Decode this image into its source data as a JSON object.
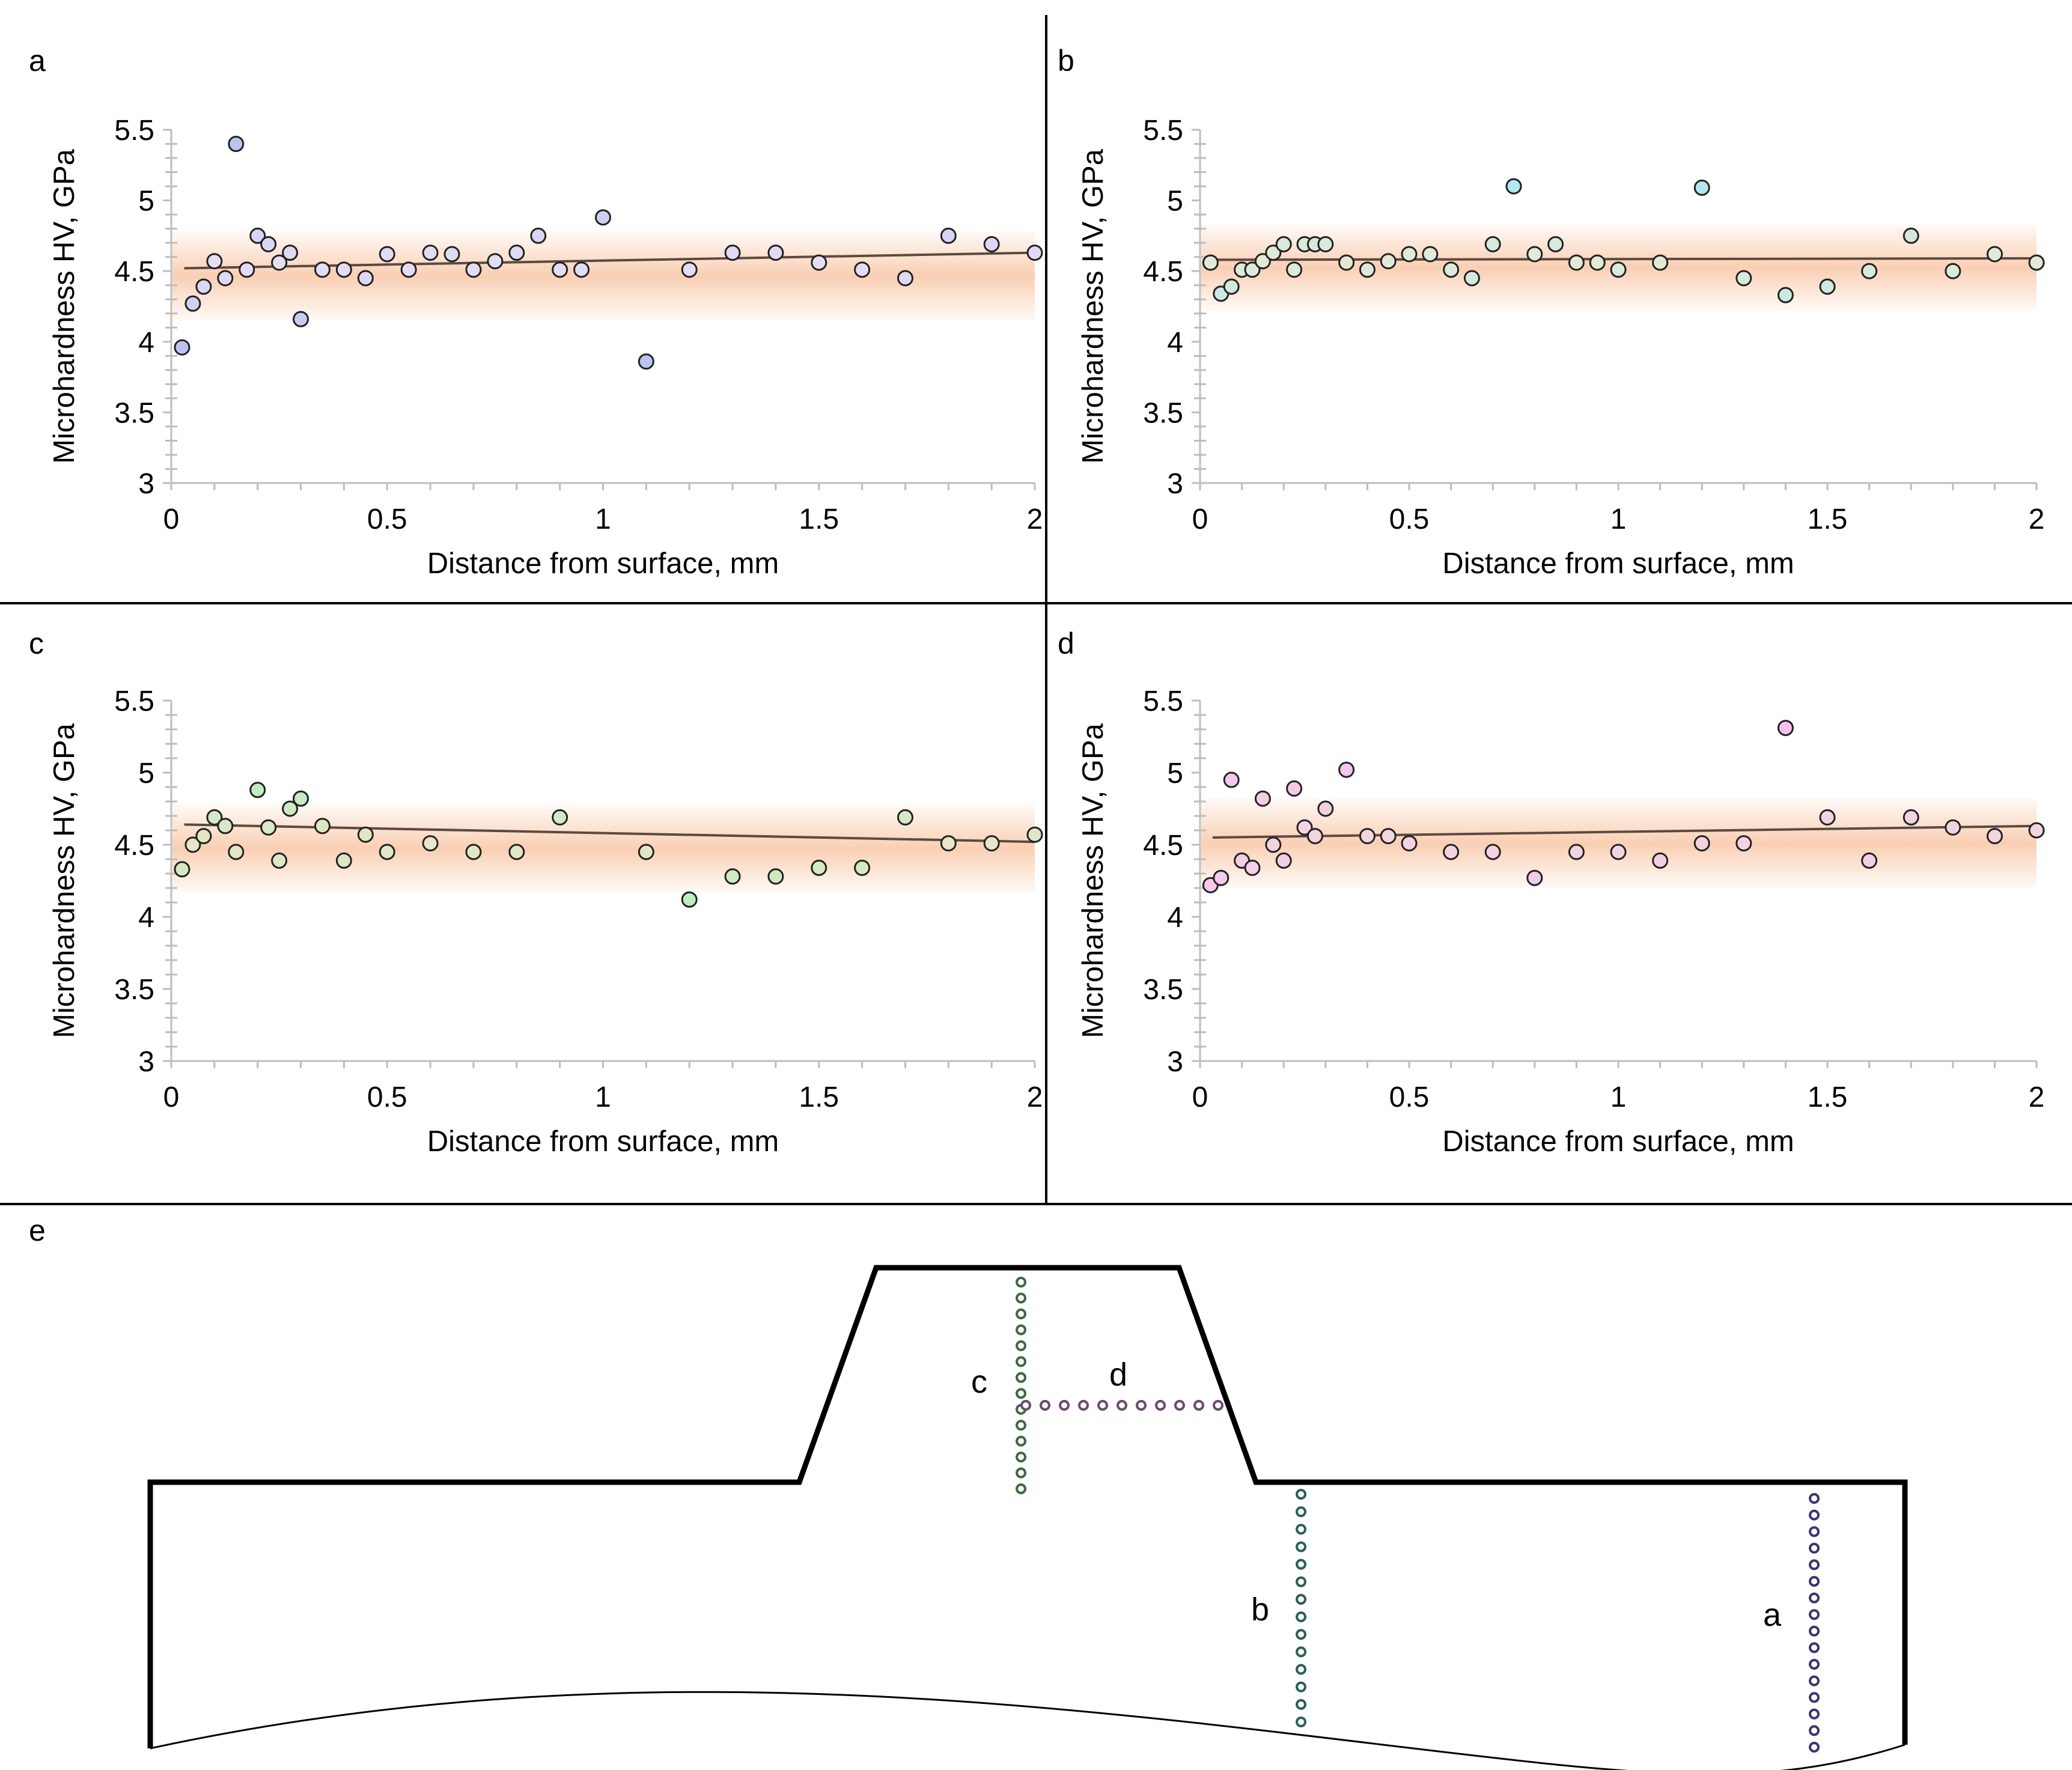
{
  "figure": {
    "panel_letters": [
      "a",
      "b",
      "c",
      "d",
      "e"
    ]
  },
  "chart_data": [
    {
      "id": "a",
      "type": "scatter",
      "xlabel": "Distance from surface, mm",
      "ylabel": "Microhardness HV, GPa",
      "xlim": [
        0,
        2
      ],
      "ylim": [
        3,
        5.5
      ],
      "xticks": [
        "0",
        "0.5",
        "1",
        "1.5",
        "2"
      ],
      "yticks": [
        "3",
        "3.5",
        "4",
        "4.5",
        "5",
        "5.5"
      ],
      "band": [
        4.15,
        4.78
      ],
      "trend": [
        [
          0.03,
          4.52
        ],
        [
          2,
          4.63
        ]
      ],
      "colors": {
        "light": "#e6dff3",
        "strong": "#bcc3f2",
        "band": "#f8bf9a",
        "trend": "#5b4a40"
      },
      "points": [
        [
          0.025,
          3.96
        ],
        [
          0.05,
          4.27
        ],
        [
          0.075,
          4.39
        ],
        [
          0.1,
          4.57
        ],
        [
          0.125,
          4.45
        ],
        [
          0.15,
          5.4
        ],
        [
          0.175,
          4.51
        ],
        [
          0.2,
          4.75
        ],
        [
          0.225,
          4.69
        ],
        [
          0.25,
          4.56
        ],
        [
          0.275,
          4.63
        ],
        [
          0.3,
          4.16
        ],
        [
          0.35,
          4.51
        ],
        [
          0.4,
          4.51
        ],
        [
          0.45,
          4.45
        ],
        [
          0.5,
          4.62
        ],
        [
          0.55,
          4.51
        ],
        [
          0.6,
          4.63
        ],
        [
          0.65,
          4.62
        ],
        [
          0.7,
          4.51
        ],
        [
          0.75,
          4.57
        ],
        [
          0.8,
          4.63
        ],
        [
          0.85,
          4.75
        ],
        [
          0.9,
          4.51
        ],
        [
          0.95,
          4.51
        ],
        [
          1.0,
          4.88
        ],
        [
          1.1,
          3.86
        ],
        [
          1.2,
          4.51
        ],
        [
          1.3,
          4.63
        ],
        [
          1.4,
          4.63
        ],
        [
          1.5,
          4.56
        ],
        [
          1.6,
          4.51
        ],
        [
          1.7,
          4.45
        ],
        [
          1.8,
          4.75
        ],
        [
          1.9,
          4.69
        ],
        [
          2.0,
          4.63
        ]
      ]
    },
    {
      "id": "b",
      "type": "scatter",
      "xlabel": "Distance from surface, mm",
      "ylabel": "Microhardness HV, GPa",
      "xlim": [
        0,
        2
      ],
      "ylim": [
        3,
        5.5
      ],
      "xticks": [
        "0",
        "0.5",
        "1",
        "1.5",
        "2"
      ],
      "yticks": [
        "3",
        "3.5",
        "4",
        "4.5",
        "5",
        "5.5"
      ],
      "band": [
        4.22,
        4.83
      ],
      "trend": [
        [
          0.03,
          4.58
        ],
        [
          2,
          4.59
        ]
      ],
      "colors": {
        "light": "#e2ead6",
        "strong": "#aee8ef",
        "band": "#f8bf9a",
        "trend": "#5b4a40"
      },
      "points": [
        [
          0.025,
          4.56
        ],
        [
          0.05,
          4.34
        ],
        [
          0.075,
          4.39
        ],
        [
          0.1,
          4.51
        ],
        [
          0.125,
          4.51
        ],
        [
          0.15,
          4.57
        ],
        [
          0.175,
          4.63
        ],
        [
          0.2,
          4.69
        ],
        [
          0.225,
          4.51
        ],
        [
          0.25,
          4.69
        ],
        [
          0.275,
          4.69
        ],
        [
          0.3,
          4.69
        ],
        [
          0.35,
          4.56
        ],
        [
          0.4,
          4.51
        ],
        [
          0.45,
          4.57
        ],
        [
          0.5,
          4.62
        ],
        [
          0.55,
          4.62
        ],
        [
          0.6,
          4.51
        ],
        [
          0.65,
          4.45
        ],
        [
          0.7,
          4.69
        ],
        [
          0.75,
          5.1
        ],
        [
          0.8,
          4.62
        ],
        [
          0.85,
          4.69
        ],
        [
          0.9,
          4.56
        ],
        [
          0.95,
          4.56
        ],
        [
          1.0,
          4.51
        ],
        [
          1.1,
          4.56
        ],
        [
          1.2,
          5.09
        ],
        [
          1.3,
          4.45
        ],
        [
          1.4,
          4.33
        ],
        [
          1.5,
          4.39
        ],
        [
          1.6,
          4.5
        ],
        [
          1.7,
          4.75
        ],
        [
          1.8,
          4.5
        ],
        [
          1.9,
          4.62
        ],
        [
          2.0,
          4.56
        ]
      ]
    },
    {
      "id": "c",
      "type": "scatter",
      "xlabel": "Distance from surface, mm",
      "ylabel": "Microhardness HV, GPa",
      "xlim": [
        0,
        2
      ],
      "ylim": [
        3,
        5.5
      ],
      "xticks": [
        "0",
        "0.5",
        "1",
        "1.5",
        "2"
      ],
      "yticks": [
        "3",
        "3.5",
        "4",
        "4.5",
        "5",
        "5.5"
      ],
      "band": [
        4.17,
        4.78
      ],
      "trend": [
        [
          0.03,
          4.64
        ],
        [
          2,
          4.52
        ]
      ],
      "colors": {
        "light": "#e8e6c6",
        "strong": "#aaf0bf",
        "band": "#f8bf9a",
        "trend": "#5b4a40"
      },
      "points": [
        [
          0.025,
          4.33
        ],
        [
          0.05,
          4.5
        ],
        [
          0.075,
          4.56
        ],
        [
          0.1,
          4.69
        ],
        [
          0.125,
          4.63
        ],
        [
          0.15,
          4.45
        ],
        [
          0.2,
          4.88
        ],
        [
          0.225,
          4.62
        ],
        [
          0.25,
          4.39
        ],
        [
          0.275,
          4.75
        ],
        [
          0.3,
          4.82
        ],
        [
          0.35,
          4.63
        ],
        [
          0.4,
          4.39
        ],
        [
          0.45,
          4.57
        ],
        [
          0.5,
          4.45
        ],
        [
          0.6,
          4.51
        ],
        [
          0.7,
          4.45
        ],
        [
          0.8,
          4.45
        ],
        [
          0.9,
          4.69
        ],
        [
          1.1,
          4.45
        ],
        [
          1.2,
          4.12
        ],
        [
          1.3,
          4.28
        ],
        [
          1.4,
          4.28
        ],
        [
          1.5,
          4.34
        ],
        [
          1.6,
          4.34
        ],
        [
          1.7,
          4.69
        ],
        [
          1.8,
          4.51
        ],
        [
          1.9,
          4.51
        ],
        [
          2.0,
          4.57
        ]
      ]
    },
    {
      "id": "d",
      "type": "scatter",
      "xlabel": "Distance from surface, mm",
      "ylabel": "Microhardness HV, GPa",
      "xlim": [
        0,
        2
      ],
      "ylim": [
        3,
        5.5
      ],
      "xticks": [
        "0",
        "0.5",
        "1",
        "1.5",
        "2"
      ],
      "yticks": [
        "3",
        "3.5",
        "4",
        "4.5",
        "5",
        "5.5"
      ],
      "band": [
        4.2,
        4.82
      ],
      "trend": [
        [
          0.03,
          4.55
        ],
        [
          2,
          4.63
        ]
      ],
      "colors": {
        "light": "#f2d6de",
        "strong": "#f5c2f0",
        "band": "#f8bf9a",
        "trend": "#5b4a40"
      },
      "points": [
        [
          0.025,
          4.22
        ],
        [
          0.05,
          4.27
        ],
        [
          0.075,
          4.95
        ],
        [
          0.1,
          4.39
        ],
        [
          0.125,
          4.34
        ],
        [
          0.15,
          4.82
        ],
        [
          0.175,
          4.5
        ],
        [
          0.2,
          4.39
        ],
        [
          0.225,
          4.89
        ],
        [
          0.25,
          4.62
        ],
        [
          0.275,
          4.56
        ],
        [
          0.3,
          4.75
        ],
        [
          0.35,
          5.02
        ],
        [
          0.4,
          4.56
        ],
        [
          0.45,
          4.56
        ],
        [
          0.5,
          4.51
        ],
        [
          0.6,
          4.45
        ],
        [
          0.7,
          4.45
        ],
        [
          0.8,
          4.27
        ],
        [
          0.9,
          4.45
        ],
        [
          1.0,
          4.45
        ],
        [
          1.1,
          4.39
        ],
        [
          1.2,
          4.51
        ],
        [
          1.3,
          4.51
        ],
        [
          1.4,
          5.31
        ],
        [
          1.5,
          4.69
        ],
        [
          1.6,
          4.39
        ],
        [
          1.7,
          4.69
        ],
        [
          1.8,
          4.62
        ],
        [
          1.9,
          4.56
        ],
        [
          2.0,
          4.6
        ]
      ]
    }
  ],
  "schematic": {
    "lines": [
      {
        "label": "a",
        "color": "#3a3570"
      },
      {
        "label": "b",
        "color": "#2a6058"
      },
      {
        "label": "c",
        "color": "#3a6a42"
      },
      {
        "label": "d",
        "color": "#6a4a6e"
      }
    ]
  }
}
